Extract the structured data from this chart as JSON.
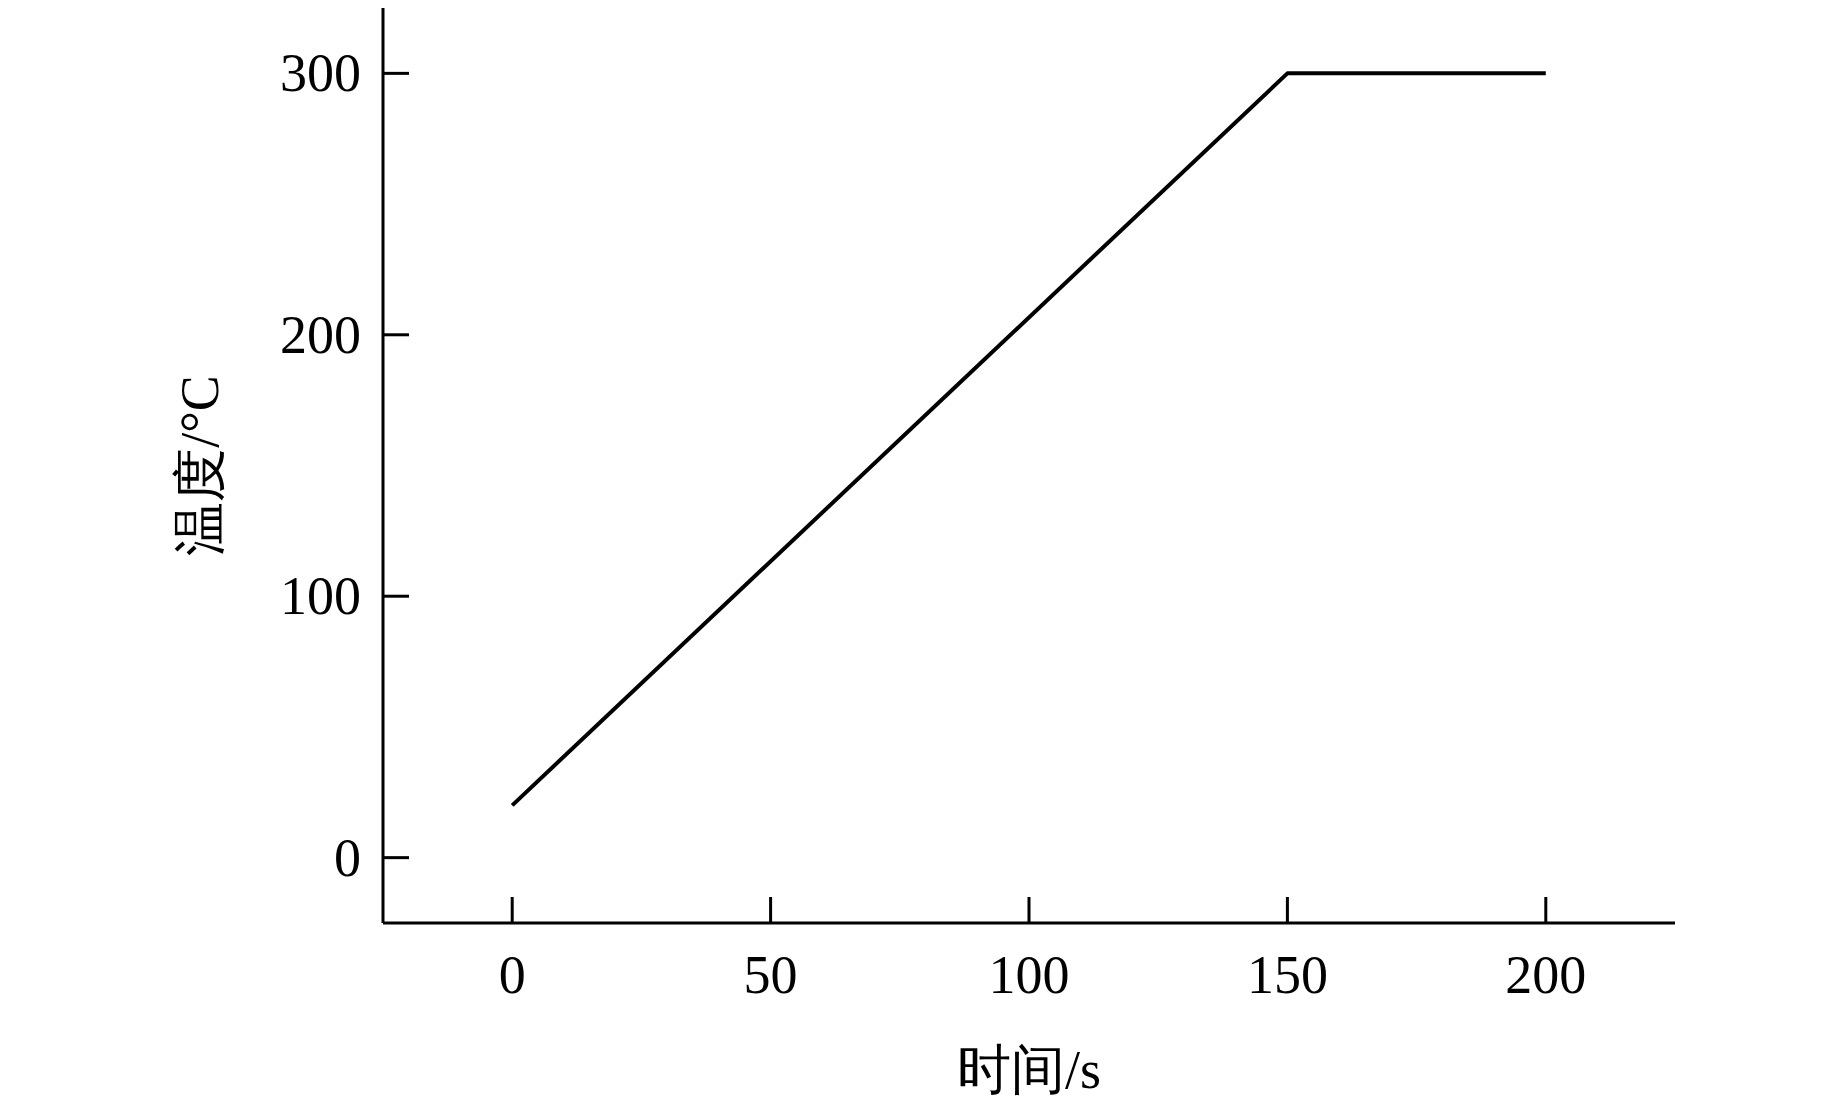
{
  "chart_data": {
    "type": "line",
    "xlabel": "时间/s",
    "ylabel": "温度/°C",
    "x": [
      0,
      150,
      200
    ],
    "series": [
      {
        "color": "#000000",
        "values": [
          20,
          300,
          300
        ]
      }
    ],
    "xlim": [
      -25,
      225
    ],
    "ylim": [
      -25,
      325
    ],
    "xticks": [
      0,
      50,
      100,
      150,
      200
    ],
    "yticks": [
      0,
      100,
      200,
      300
    ],
    "grid": false,
    "marker": "none",
    "line_style": "solid"
  }
}
